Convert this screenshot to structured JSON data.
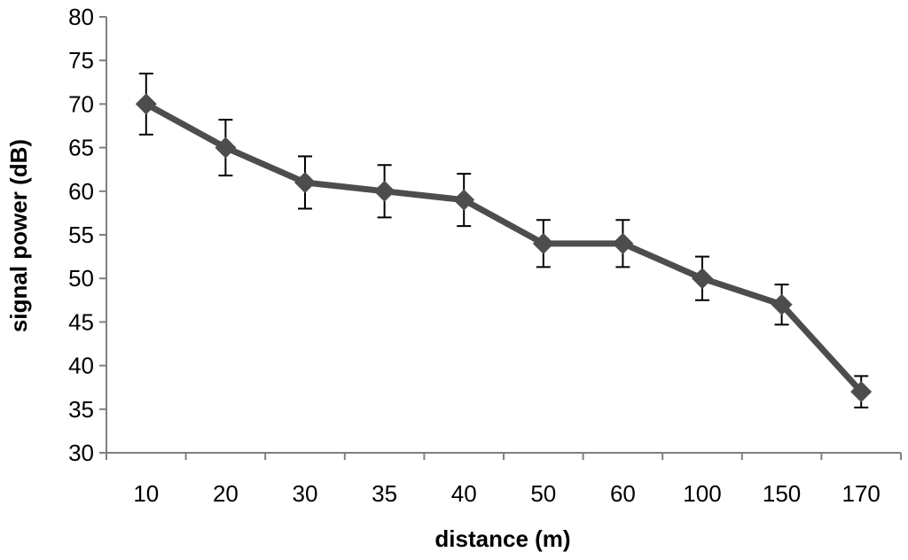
{
  "chart_data": {
    "type": "line",
    "title": "",
    "xlabel": "distance (m)",
    "ylabel": "signal power (dB)",
    "categories": [
      "10",
      "20",
      "30",
      "35",
      "40",
      "50",
      "60",
      "100",
      "150",
      "170"
    ],
    "series": [
      {
        "name": "signal power",
        "values": [
          70,
          65,
          61,
          60,
          59,
          54,
          54,
          50,
          47,
          37
        ],
        "error_low": [
          66.5,
          61.8,
          58,
          57,
          56,
          51.3,
          51.3,
          47.5,
          44.7,
          35.2
        ],
        "error_high": [
          73.5,
          68.2,
          64,
          63,
          62,
          56.7,
          56.7,
          52.5,
          49.3,
          38.8
        ]
      }
    ],
    "ylim": [
      30,
      80
    ],
    "yticks": [
      "30",
      "35",
      "40",
      "45",
      "50",
      "55",
      "60",
      "65",
      "70",
      "75",
      "80"
    ],
    "grid": false,
    "legend": "none"
  },
  "colors": {
    "series": "#4d4d4d",
    "axis": "#7f7f7f",
    "error_bar": "#000000"
  }
}
